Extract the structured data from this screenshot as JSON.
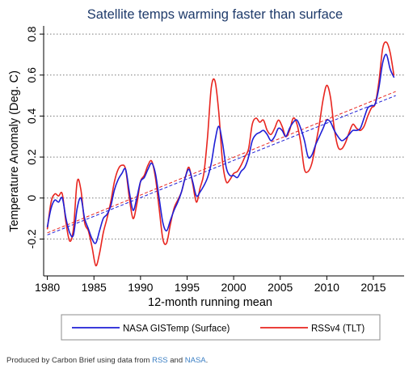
{
  "chart_data": {
    "type": "line",
    "title": "Satellite temps warming faster than surface",
    "xlabel": "12-month running mean",
    "ylabel": "Temperature Anomaly (Deg. C)",
    "xlim": [
      1979.6,
      2018.3
    ],
    "ylim": [
      -0.38,
      0.84
    ],
    "x_ticks": [
      1980,
      1985,
      1990,
      1995,
      2000,
      2005,
      2010,
      2015
    ],
    "y_ticks": [
      -0.2,
      0,
      0.2,
      0.4,
      0.6,
      0.8
    ],
    "x_tick_labels": [
      "1980",
      "1985",
      "1990",
      "1995",
      "2000",
      "2005",
      "2010",
      "2015"
    ],
    "y_tick_labels": [
      "-0.2",
      "0",
      "0.2",
      "0.4",
      "0.6",
      "0.8"
    ],
    "grid": "horizontal dotted at y ticks",
    "legend_position": "bottom",
    "series": [
      {
        "name": "NASA GISTemp (Surface)",
        "color": "#1f1fd6",
        "x": [
          1980.0,
          1980.4,
          1980.8,
          1981.2,
          1981.6,
          1982.0,
          1982.4,
          1982.8,
          1983.2,
          1983.6,
          1984.0,
          1984.4,
          1984.8,
          1985.2,
          1985.6,
          1986.0,
          1986.4,
          1986.8,
          1987.2,
          1987.6,
          1988.0,
          1988.4,
          1988.8,
          1989.2,
          1989.6,
          1990.0,
          1990.4,
          1990.8,
          1991.2,
          1991.6,
          1992.0,
          1992.4,
          1992.8,
          1993.2,
          1993.6,
          1994.0,
          1994.4,
          1994.8,
          1995.2,
          1995.6,
          1996.0,
          1996.4,
          1996.8,
          1997.2,
          1997.6,
          1998.0,
          1998.4,
          1998.8,
          1999.2,
          1999.6,
          2000.0,
          2000.4,
          2000.8,
          2001.2,
          2001.6,
          2002.0,
          2002.4,
          2002.8,
          2003.2,
          2003.6,
          2004.0,
          2004.4,
          2004.8,
          2005.2,
          2005.6,
          2006.0,
          2006.4,
          2006.8,
          2007.2,
          2007.6,
          2008.0,
          2008.4,
          2008.8,
          2009.2,
          2009.6,
          2010.0,
          2010.4,
          2010.8,
          2011.2,
          2011.6,
          2012.0,
          2012.4,
          2012.8,
          2013.2,
          2013.6,
          2014.0,
          2014.4,
          2014.8,
          2015.2,
          2015.6,
          2016.0,
          2016.4,
          2016.8,
          2017.2
        ],
        "values": [
          -0.14,
          -0.05,
          -0.01,
          -0.02,
          0.0,
          -0.1,
          -0.17,
          -0.18,
          -0.05,
          0.0,
          -0.1,
          -0.15,
          -0.2,
          -0.22,
          -0.16,
          -0.1,
          -0.08,
          -0.04,
          0.04,
          0.09,
          0.12,
          0.14,
          0.03,
          -0.06,
          0.0,
          0.08,
          0.1,
          0.14,
          0.17,
          0.12,
          0.0,
          -0.12,
          -0.16,
          -0.11,
          -0.06,
          -0.02,
          0.03,
          0.1,
          0.14,
          0.08,
          0.01,
          0.03,
          0.06,
          0.1,
          0.17,
          0.28,
          0.35,
          0.27,
          0.15,
          0.11,
          0.11,
          0.1,
          0.13,
          0.15,
          0.2,
          0.28,
          0.31,
          0.32,
          0.33,
          0.31,
          0.28,
          0.3,
          0.34,
          0.33,
          0.3,
          0.34,
          0.37,
          0.38,
          0.34,
          0.28,
          0.2,
          0.21,
          0.26,
          0.3,
          0.34,
          0.38,
          0.37,
          0.33,
          0.3,
          0.28,
          0.29,
          0.31,
          0.33,
          0.33,
          0.34,
          0.39,
          0.44,
          0.45,
          0.46,
          0.54,
          0.66,
          0.7,
          0.63,
          0.59
        ]
      },
      {
        "name": "RSSv4 (TLT)",
        "color": "#e8251f",
        "x": [
          1980.0,
          1980.4,
          1980.8,
          1981.2,
          1981.6,
          1982.0,
          1982.4,
          1982.8,
          1983.2,
          1983.6,
          1984.0,
          1984.4,
          1984.8,
          1985.2,
          1985.6,
          1986.0,
          1986.4,
          1986.8,
          1987.2,
          1987.6,
          1988.0,
          1988.4,
          1988.8,
          1989.2,
          1989.6,
          1990.0,
          1990.4,
          1990.8,
          1991.2,
          1991.6,
          1992.0,
          1992.4,
          1992.8,
          1993.2,
          1993.6,
          1994.0,
          1994.4,
          1994.8,
          1995.2,
          1995.6,
          1996.0,
          1996.4,
          1996.8,
          1997.2,
          1997.6,
          1998.0,
          1998.4,
          1998.8,
          1999.2,
          1999.6,
          2000.0,
          2000.4,
          2000.8,
          2001.2,
          2001.6,
          2002.0,
          2002.4,
          2002.8,
          2003.2,
          2003.6,
          2004.0,
          2004.4,
          2004.8,
          2005.2,
          2005.6,
          2006.0,
          2006.4,
          2006.8,
          2007.2,
          2007.6,
          2008.0,
          2008.4,
          2008.8,
          2009.2,
          2009.6,
          2010.0,
          2010.4,
          2010.8,
          2011.2,
          2011.6,
          2012.0,
          2012.4,
          2012.8,
          2013.2,
          2013.6,
          2014.0,
          2014.4,
          2014.8,
          2015.2,
          2015.6,
          2016.0,
          2016.4,
          2016.8,
          2017.2
        ],
        "values": [
          -0.15,
          -0.02,
          0.02,
          0.01,
          0.02,
          -0.12,
          -0.21,
          -0.15,
          0.08,
          0.04,
          -0.12,
          -0.16,
          -0.24,
          -0.33,
          -0.27,
          -0.17,
          -0.1,
          -0.02,
          0.08,
          0.14,
          0.16,
          0.14,
          0.0,
          -0.1,
          -0.03,
          0.08,
          0.11,
          0.16,
          0.18,
          0.1,
          -0.05,
          -0.2,
          -0.22,
          -0.13,
          -0.05,
          -0.01,
          0.03,
          0.1,
          0.15,
          0.07,
          -0.02,
          0.05,
          0.12,
          0.3,
          0.54,
          0.57,
          0.42,
          0.18,
          0.08,
          0.09,
          0.12,
          0.13,
          0.16,
          0.2,
          0.24,
          0.36,
          0.39,
          0.37,
          0.38,
          0.33,
          0.31,
          0.34,
          0.38,
          0.35,
          0.3,
          0.33,
          0.39,
          0.36,
          0.27,
          0.14,
          0.13,
          0.17,
          0.26,
          0.36,
          0.48,
          0.55,
          0.49,
          0.34,
          0.25,
          0.24,
          0.27,
          0.32,
          0.36,
          0.34,
          0.33,
          0.35,
          0.4,
          0.44,
          0.46,
          0.57,
          0.73,
          0.76,
          0.71,
          0.6
        ]
      }
    ],
    "trend_lines": [
      {
        "name": "NASA GISTemp (Surface)",
        "x": [
          1980,
          2017.4
        ],
        "y": [
          -0.18,
          0.5
        ],
        "style": "dashed",
        "color": "#1f1fd6"
      },
      {
        "name": "RSSv4 (TLT)",
        "x": [
          1980,
          2017.4
        ],
        "y": [
          -0.17,
          0.52
        ],
        "style": "dashed",
        "color": "#e8251f"
      }
    ]
  },
  "legend": {
    "items": [
      {
        "label": "NASA GISTemp (Surface)",
        "color": "#1f1fd6"
      },
      {
        "label": "RSSv4 (TLT)",
        "color": "#e8251f"
      }
    ]
  },
  "credit": {
    "prefix": "Produced by Carbon Brief using data from ",
    "link1": "RSS",
    "middle": " and ",
    "link2": "NASA",
    "suffix": "."
  },
  "colors": {
    "title": "#1f3b6b",
    "grid": "#7a7a7a",
    "legend_border": "#8c8c8c",
    "legend_bg": "#ffffff",
    "link": "#3b7fc4"
  }
}
